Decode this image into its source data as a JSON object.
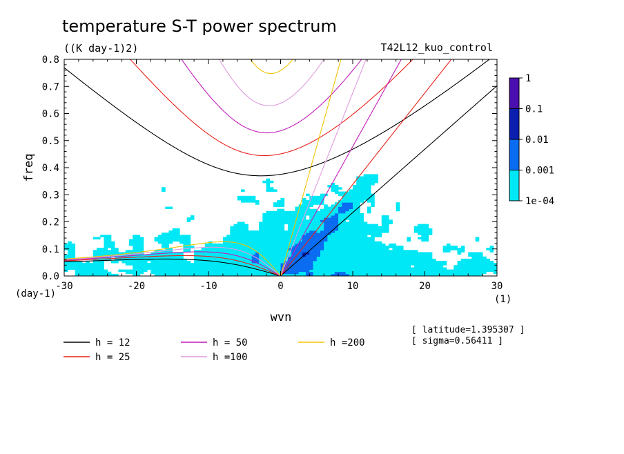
{
  "chart_data": {
    "type": "contour",
    "title": "temperature S-T power spectrum",
    "units": "((K day-1)2)",
    "run_label": "T42L12_kuo_control",
    "xlabel": "wvn",
    "ylabel": "freq",
    "x_unit": "(1)",
    "y_unit": "(day-1)",
    "xlim": [
      -30,
      30
    ],
    "ylim": [
      0,
      0.8
    ],
    "x_ticks": [
      -30,
      -20,
      -10,
      0,
      10,
      20,
      30
    ],
    "y_ticks": [
      0.0,
      0.1,
      0.2,
      0.3,
      0.4,
      0.5,
      0.6,
      0.7,
      0.8
    ],
    "colorbar": {
      "levels": [
        "1",
        "0.1",
        "0.01",
        "0.001",
        "1e-04"
      ],
      "colors": [
        "#4B0FAF",
        "#0A1FB0",
        "#0A6CF0",
        "#00E8F5"
      ]
    },
    "dispersion_curves": [
      {
        "label": "h = 12",
        "equivalent_depth": 12,
        "color": "#000000"
      },
      {
        "label": "h = 25",
        "equivalent_depth": 25,
        "color": "#E8201A"
      },
      {
        "label": "h = 50",
        "equivalent_depth": 50,
        "color": "#C21BB8"
      },
      {
        "label": "h =100",
        "equivalent_depth": 100,
        "color": "#E09ADF"
      },
      {
        "label": "h =200",
        "equivalent_depth": 200,
        "color": "#F2C400"
      }
    ],
    "info": {
      "latitude": "[ latitude=1.395307 ]",
      "sigma": "[ sigma=0.56411 ]"
    }
  }
}
